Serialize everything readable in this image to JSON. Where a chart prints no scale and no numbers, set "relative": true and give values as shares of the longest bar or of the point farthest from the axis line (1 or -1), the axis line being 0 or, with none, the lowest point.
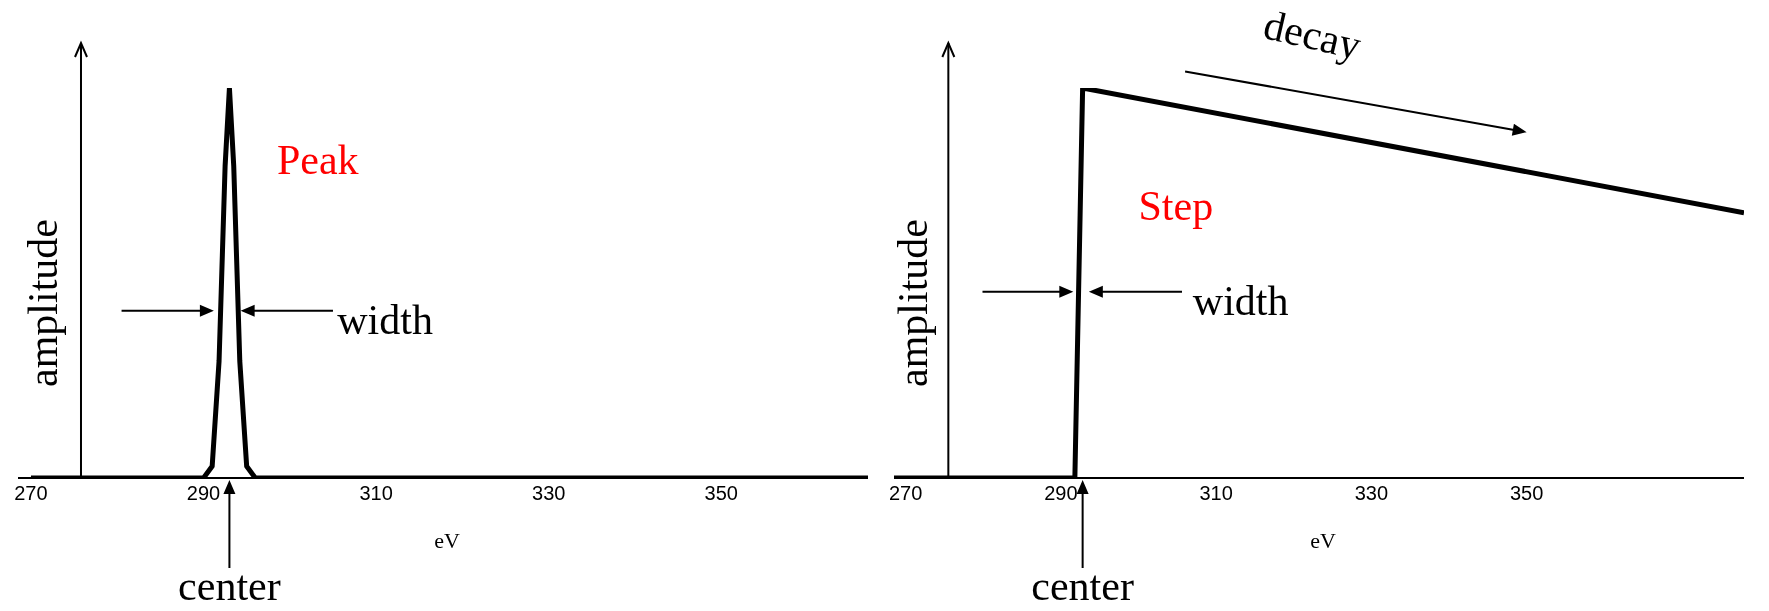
{
  "chart_data": [
    {
      "type": "line",
      "relative": true,
      "xlabel": "eV",
      "ylabel": "amplitude",
      "color": "#000000",
      "x": [
        270,
        290,
        291,
        291.8,
        292.5,
        293,
        293.5,
        294.2,
        295,
        296,
        367
      ],
      "values": [
        0,
        0,
        0.03,
        0.3,
        0.8,
        1,
        0.8,
        0.3,
        0.03,
        0,
        0
      ],
      "xlim": [
        268.5,
        367
      ],
      "xticks": [
        270,
        290,
        310,
        330,
        350
      ],
      "ref_lines": [
        {
          "axis": "x",
          "value": 275.8
        }
      ],
      "annotations": [
        "Peak",
        "width",
        "center"
      ]
    },
    {
      "type": "line",
      "relative": true,
      "xlabel": "eV",
      "ylabel": "amplitude",
      "color": "#000000",
      "x": [
        268.5,
        291.8,
        292.3,
        292.8,
        378
      ],
      "values": [
        0,
        0,
        0.5,
        1,
        0.68
      ],
      "xlim": [
        268.5,
        378
      ],
      "xticks": [
        270,
        290,
        310,
        330,
        350
      ],
      "ref_lines": [
        {
          "axis": "x",
          "value": 275.5
        }
      ],
      "annotations": [
        "Step",
        "width",
        "center",
        "decay"
      ]
    }
  ]
}
